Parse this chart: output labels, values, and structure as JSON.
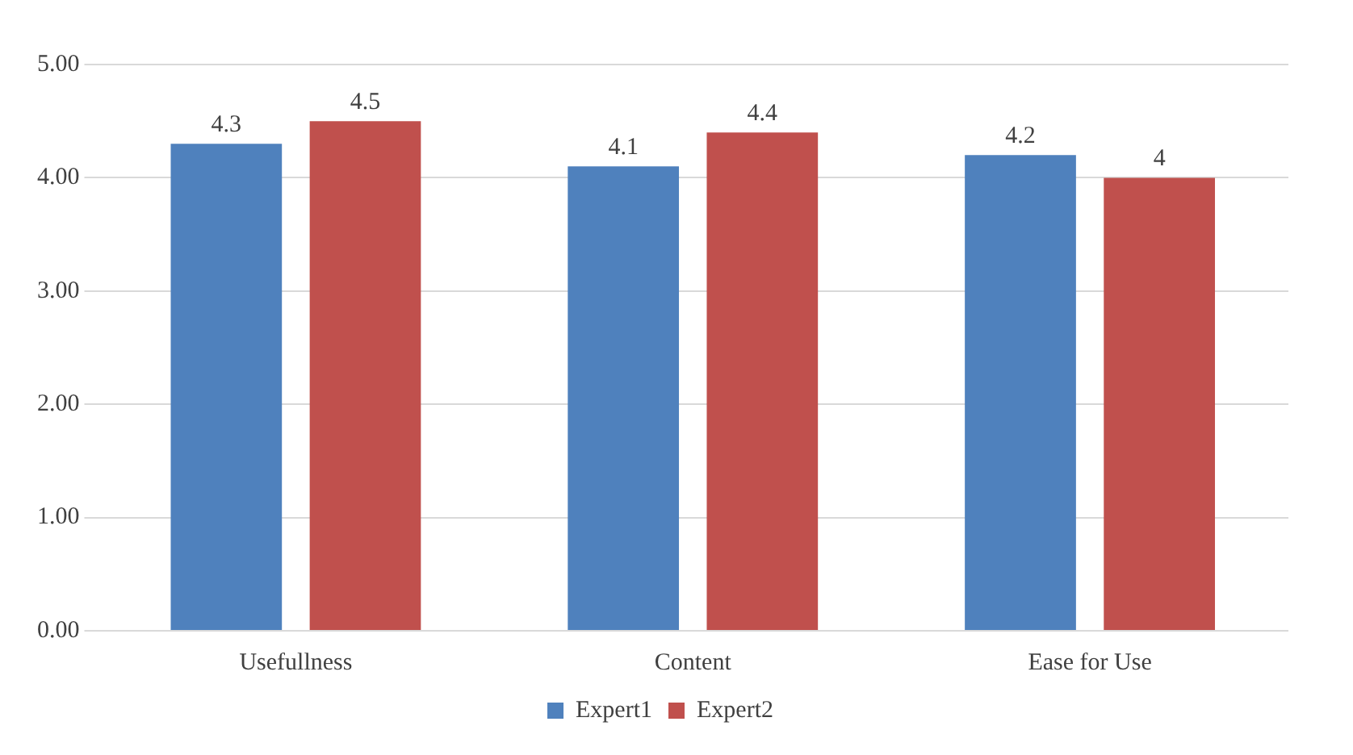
{
  "chart_data": {
    "type": "bar",
    "categories": [
      "Usefullness",
      "Content",
      "Ease for Use"
    ],
    "series": [
      {
        "name": "Expert1",
        "color": "#4f81bd",
        "values": [
          4.3,
          4.1,
          4.2
        ]
      },
      {
        "name": "Expert2",
        "color": "#c0504d",
        "values": [
          4.5,
          4.4,
          4
        ]
      }
    ],
    "ylim": [
      0,
      5
    ],
    "yticks": [
      {
        "value": 0,
        "label": "0.00"
      },
      {
        "value": 1,
        "label": "1.00"
      },
      {
        "value": 2,
        "label": "2.00"
      },
      {
        "value": 3,
        "label": "3.00"
      },
      {
        "value": 4,
        "label": "4.00"
      },
      {
        "value": 5,
        "label": "5.00"
      }
    ],
    "grid": "y",
    "legend": "bottom",
    "data_labels": true
  }
}
